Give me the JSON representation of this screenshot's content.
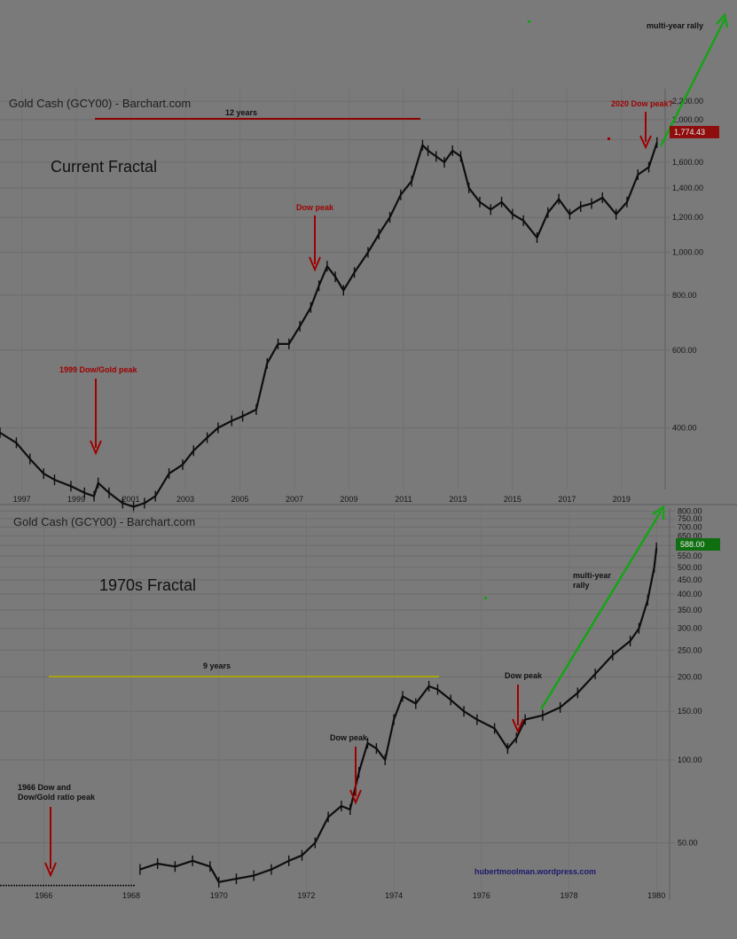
{
  "chart_data": [
    {
      "type": "line",
      "title": "Gold Cash (GCY00) - Barchart.com",
      "label": "Current Fractal",
      "yscale": "log",
      "ylim": [
        290,
        2350
      ],
      "xlim": [
        1996.2,
        2020.6
      ],
      "yticks": [
        400,
        600,
        800,
        1000,
        1200,
        1400,
        1600,
        1800,
        2000,
        2200
      ],
      "ytick_labels": [
        "400.00",
        "600.00",
        "800.00",
        "1,000.00",
        "1,200.00",
        "1,400.00",
        "1,600.00",
        "",
        "2,000.00",
        "2,200.00"
      ],
      "xticks": [
        1997,
        1999,
        2001,
        2003,
        2005,
        2007,
        2009,
        2011,
        2013,
        2015,
        2017,
        2019
      ],
      "xtick_labels": [
        "1997",
        "1999",
        "2001",
        "2003",
        "2005",
        "2007",
        "2009",
        "2011",
        "2013",
        "2015",
        "2017",
        "2019"
      ],
      "last_price": 1774.43,
      "last_price_label": "1,774.43",
      "series": [
        {
          "x": [
            1996.2,
            1996.8,
            1997.3,
            1997.8,
            1998.2,
            1998.8,
            1999.3,
            1999.65,
            1999.8,
            2000.2,
            2000.7,
            2001.1,
            2001.5,
            2001.9,
            2002.4,
            2002.9,
            2003.3,
            2003.8,
            2004.2,
            2004.7,
            2005.1,
            2005.6,
            2006.0,
            2006.4,
            2006.8,
            2007.2,
            2007.6,
            2007.9,
            2008.2,
            2008.5,
            2008.8,
            2009.2,
            2009.7,
            2010.1,
            2010.5,
            2010.9,
            2011.3,
            2011.7,
            2011.9,
            2012.2,
            2012.5,
            2012.8,
            2013.1,
            2013.4,
            2013.8,
            2014.2,
            2014.6,
            2015.0,
            2015.4,
            2015.9,
            2016.3,
            2016.7,
            2017.1,
            2017.5,
            2017.9,
            2018.3,
            2018.8,
            2019.2,
            2019.6,
            2020.0,
            2020.3
          ],
          "y": [
            390,
            370,
            340,
            315,
            305,
            295,
            285,
            280,
            300,
            285,
            270,
            265,
            270,
            280,
            315,
            330,
            355,
            380,
            400,
            415,
            425,
            440,
            560,
            620,
            620,
            680,
            750,
            840,
            930,
            880,
            820,
            900,
            1000,
            1100,
            1200,
            1350,
            1450,
            1750,
            1700,
            1650,
            1600,
            1700,
            1650,
            1400,
            1300,
            1250,
            1300,
            1220,
            1180,
            1080,
            1230,
            1320,
            1220,
            1270,
            1290,
            1330,
            1220,
            1300,
            1500,
            1560,
            1774
          ]
        }
      ],
      "annotations": [
        {
          "text": "12 years"
        },
        {
          "text": "Dow peak"
        },
        {
          "text": "1999 Dow/Gold peak"
        },
        {
          "text": "2020 Dow peak?"
        },
        {
          "text": "multi-year rally"
        }
      ]
    },
    {
      "type": "line",
      "title": "Gold Cash (GCY00) - Barchart.com",
      "label": "1970s Fractal",
      "yscale": "log",
      "ylim": [
        31,
        820
      ],
      "xlim": [
        1965,
        1980.3
      ],
      "yticks": [
        50,
        100,
        150,
        200,
        250,
        300,
        350,
        400,
        450,
        500,
        550,
        600,
        650,
        700,
        750,
        800
      ],
      "ytick_labels": [
        "50.00",
        "100.00",
        "150.00",
        "200.00",
        "250.00",
        "300.00",
        "350.00",
        "400.00",
        "450.00",
        "500.00",
        "550.00",
        "600.00",
        "650.00",
        "700.00",
        "750.00",
        "800.00"
      ],
      "xticks": [
        1966,
        1968,
        1970,
        1972,
        1974,
        1976,
        1978,
        1980
      ],
      "xtick_labels": [
        "1966",
        "1968",
        "1970",
        "1972",
        "1974",
        "1976",
        "1978",
        "1980"
      ],
      "last_price": 588,
      "last_price_label": "588.00",
      "series": [
        {
          "x": [
            1968.2,
            1968.6,
            1969.0,
            1969.4,
            1969.8,
            1970.0,
            1970.4,
            1970.8,
            1971.2,
            1971.6,
            1971.9,
            1972.2,
            1972.5,
            1972.8,
            1973.0,
            1973.2,
            1973.4,
            1973.6,
            1973.8,
            1974.0,
            1974.2,
            1974.5,
            1974.8,
            1975.0,
            1975.3,
            1975.6,
            1975.9,
            1976.3,
            1976.6,
            1976.8,
            1977.0,
            1977.4,
            1977.8,
            1978.2,
            1978.6,
            1979.0,
            1979.4,
            1979.6,
            1979.8,
            1979.95,
            1980.0
          ],
          "y": [
            40,
            42,
            41,
            43,
            41,
            36,
            37,
            38,
            40,
            43,
            45,
            50,
            62,
            68,
            66,
            90,
            115,
            110,
            100,
            140,
            170,
            160,
            185,
            180,
            165,
            150,
            140,
            130,
            110,
            120,
            140,
            145,
            155,
            175,
            205,
            240,
            270,
            300,
            380,
            500,
            588
          ]
        }
      ],
      "annotations": [
        {
          "text": "9 years"
        },
        {
          "text": "Dow peak"
        },
        {
          "text": "Dow peak"
        },
        {
          "text": "multi-year"
        },
        {
          "text": "rally"
        },
        {
          "text": "1966 Dow and"
        },
        {
          "text": "Dow/Gold ratio peak"
        },
        {
          "text": "hubertmoolman.wordpress.com"
        }
      ]
    }
  ]
}
